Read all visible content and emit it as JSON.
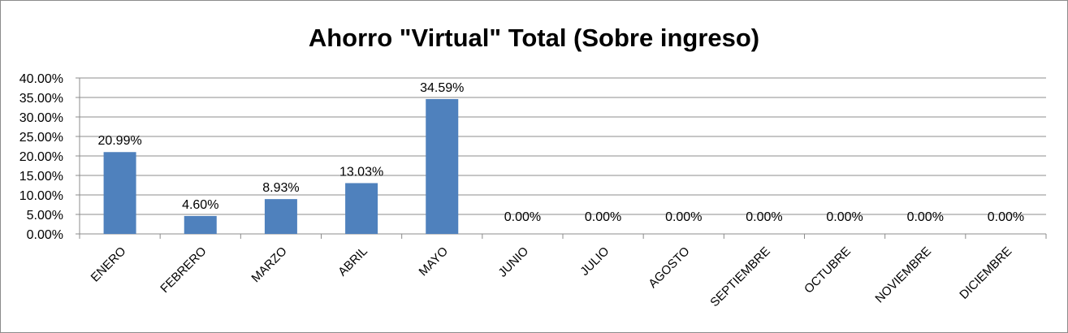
{
  "chart_data": {
    "type": "bar",
    "title": "Ahorro \"Virtual\" Total (Sobre ingreso)",
    "categories": [
      "ENERO",
      "FEBRERO",
      "MARZO",
      "ABRIL",
      "MAYO",
      "JUNIO",
      "JULIO",
      "AGOSTO",
      "SEPTIEMBRE",
      "OCTUBRE",
      "NOVIEMBRE",
      "DICIEMBRE"
    ],
    "values": [
      20.99,
      4.6,
      8.93,
      13.03,
      34.59,
      0,
      0,
      0,
      0,
      0,
      0,
      0
    ],
    "data_labels": [
      "20.99%",
      "4.60%",
      "8.93%",
      "13.03%",
      "34.59%",
      "0.00%",
      "0.00%",
      "0.00%",
      "0.00%",
      "0.00%",
      "0.00%",
      "0.00%"
    ],
    "yticks": [
      "0.00%",
      "5.00%",
      "10.00%",
      "15.00%",
      "20.00%",
      "25.00%",
      "30.00%",
      "35.00%",
      "40.00%"
    ],
    "ylim": [
      0,
      40
    ],
    "ystep": 5,
    "grid": true,
    "bar_color": "#4f81bd",
    "legend": "none"
  }
}
